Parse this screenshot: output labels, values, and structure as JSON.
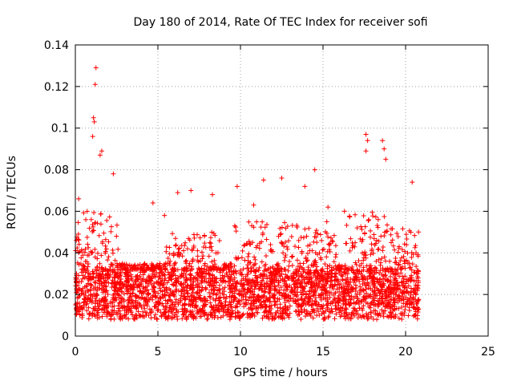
{
  "chart_data": {
    "type": "scatter",
    "title": "Day 180 of 2014, Rate Of TEC Index for receiver sofi",
    "xlabel": "GPS time / hours",
    "ylabel": "ROTI / TECUs",
    "xlim": [
      0,
      25
    ],
    "ylim": [
      0,
      0.14
    ],
    "xticks": [
      "0",
      "5",
      "10",
      "15",
      "20",
      "25"
    ],
    "yticks": [
      "0",
      "0.02",
      "0.04",
      "0.06",
      "0.08",
      "0.1",
      "0.12",
      "0.14"
    ],
    "grid": true,
    "marker": "+",
    "color": "#ff0000",
    "series": [
      {
        "name": "ROTI",
        "description": "dense scatter of ROTI samples from 0 to ~20.8 h; baseline ~0.01-0.03 TECUs",
        "baseline_range": [
          0.008,
          0.032
        ],
        "time_range": [
          0.0,
          20.8
        ],
        "notable_points": [
          {
            "x": 1.25,
            "y": 0.129
          },
          {
            "x": 1.2,
            "y": 0.121
          },
          {
            "x": 1.1,
            "y": 0.105
          },
          {
            "x": 1.15,
            "y": 0.103
          },
          {
            "x": 1.05,
            "y": 0.096
          },
          {
            "x": 1.6,
            "y": 0.089
          },
          {
            "x": 1.5,
            "y": 0.087
          },
          {
            "x": 17.6,
            "y": 0.097
          },
          {
            "x": 17.7,
            "y": 0.094
          },
          {
            "x": 18.6,
            "y": 0.094
          },
          {
            "x": 18.7,
            "y": 0.09
          },
          {
            "x": 17.6,
            "y": 0.089
          },
          {
            "x": 18.8,
            "y": 0.085
          },
          {
            "x": 14.5,
            "y": 0.08
          },
          {
            "x": 2.3,
            "y": 0.078
          },
          {
            "x": 12.5,
            "y": 0.076
          },
          {
            "x": 11.4,
            "y": 0.075
          },
          {
            "x": 20.4,
            "y": 0.074
          },
          {
            "x": 9.8,
            "y": 0.072
          },
          {
            "x": 13.9,
            "y": 0.072
          },
          {
            "x": 6.2,
            "y": 0.069
          },
          {
            "x": 7.0,
            "y": 0.07
          },
          {
            "x": 8.3,
            "y": 0.068
          },
          {
            "x": 0.2,
            "y": 0.066
          },
          {
            "x": 4.7,
            "y": 0.064
          },
          {
            "x": 10.8,
            "y": 0.063
          },
          {
            "x": 15.3,
            "y": 0.062
          },
          {
            "x": 16.3,
            "y": 0.06
          },
          {
            "x": 5.4,
            "y": 0.058
          }
        ]
      }
    ]
  }
}
